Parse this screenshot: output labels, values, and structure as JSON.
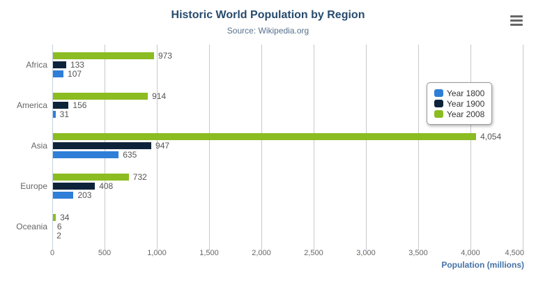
{
  "header": {
    "title": "Historic World Population by Region",
    "subtitle": "Source: Wikipedia.org"
  },
  "icons": {
    "context_menu": "hamburger-icon"
  },
  "x_axis": {
    "title": "Population (millions)",
    "tick_labels": [
      "0",
      "500",
      "1,000",
      "1,500",
      "2,000",
      "2,500",
      "3,000",
      "3,500",
      "4,000",
      "4,500"
    ]
  },
  "chart_data": {
    "type": "bar",
    "orientation": "horizontal",
    "title": "Historic World Population by Region",
    "subtitle": "Source: Wikipedia.org",
    "categories": [
      "Africa",
      "America",
      "Asia",
      "Europe",
      "Oceania"
    ],
    "series": [
      {
        "name": "Year 1800",
        "color": "#2f7ed8",
        "values": [
          107,
          31,
          635,
          203,
          2
        ]
      },
      {
        "name": "Year 1900",
        "color": "#0d233a",
        "values": [
          133,
          156,
          947,
          408,
          6
        ]
      },
      {
        "name": "Year 2008",
        "color": "#8bbc21",
        "values": [
          973,
          914,
          4054,
          732,
          34
        ]
      }
    ],
    "bar_order_top_to_bottom": [
      "Year 2008",
      "Year 1900",
      "Year 1800"
    ],
    "xlabel": "Population (millions)",
    "xlim": [
      0,
      4500
    ],
    "x_tick_interval": 500,
    "grid": true,
    "data_labels": true,
    "legend_position": "right",
    "legend_entries": [
      "Year 1800",
      "Year 1900",
      "Year 2008"
    ]
  }
}
